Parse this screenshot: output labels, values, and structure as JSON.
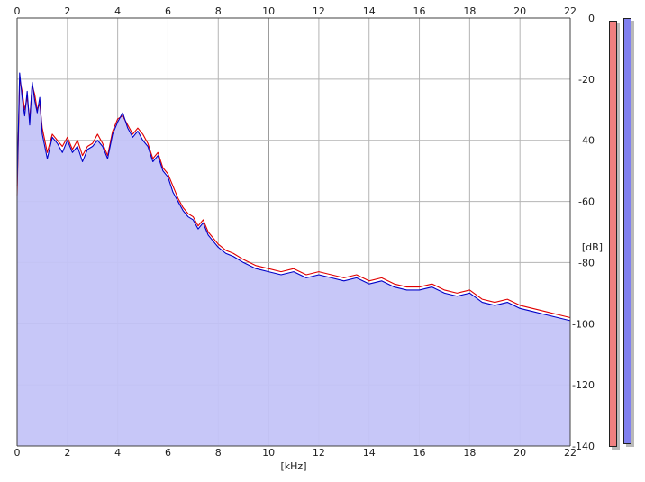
{
  "colors": {
    "background": "#ffffff",
    "fill": "#c4c4f8",
    "grid": "#b4b4b4",
    "grid_major": "#8a8a8a",
    "left_channel": "#e00000",
    "right_channel": "#0000c8",
    "left_meter": "#f08080",
    "right_meter": "#8080f0"
  },
  "chart_data": {
    "type": "line",
    "xlabel": "[kHz]",
    "ylabel": "[dB]",
    "xlim": [
      0,
      22
    ],
    "ylim": [
      -140,
      0
    ],
    "x_ticks": [
      "0",
      "2",
      "4",
      "6",
      "8",
      "10",
      "12",
      "14",
      "16",
      "18",
      "20",
      "22"
    ],
    "y_ticks": [
      "0",
      "-20",
      "-40",
      "-60",
      "-80",
      "-100",
      "-120",
      "-140"
    ],
    "grid": true,
    "series": [
      {
        "color": "red",
        "x": [
          0,
          0.1,
          0.2,
          0.3,
          0.4,
          0.5,
          0.6,
          0.7,
          0.8,
          0.9,
          1.0,
          1.2,
          1.4,
          1.6,
          1.8,
          2.0,
          2.2,
          2.4,
          2.6,
          2.8,
          3.0,
          3.2,
          3.4,
          3.6,
          3.8,
          4.0,
          4.2,
          4.4,
          4.6,
          4.8,
          5.0,
          5.2,
          5.4,
          5.6,
          5.8,
          6.0,
          6.2,
          6.4,
          6.6,
          6.8,
          7.0,
          7.2,
          7.4,
          7.6,
          7.8,
          8.0,
          8.3,
          8.6,
          9.0,
          9.5,
          10.0,
          10.5,
          11.0,
          11.5,
          12.0,
          12.5,
          13.0,
          13.5,
          14.0,
          14.5,
          15.0,
          15.5,
          16.0,
          16.5,
          17.0,
          17.5,
          18.0,
          18.5,
          19.0,
          19.5,
          20.0,
          20.5,
          21.0,
          21.5,
          22.0
        ],
        "y": [
          -58,
          -20,
          -24,
          -30,
          -26,
          -33,
          -22,
          -25,
          -30,
          -28,
          -36,
          -44,
          -38,
          -40,
          -42,
          -39,
          -43,
          -40,
          -45,
          -42,
          -41,
          -38,
          -41,
          -45,
          -37,
          -33,
          -32,
          -35,
          -38,
          -36,
          -38,
          -41,
          -46,
          -44,
          -49,
          -51,
          -55,
          -59,
          -62,
          -64,
          -65,
          -68,
          -66,
          -70,
          -72,
          -74,
          -76,
          -77,
          -79,
          -81,
          -82,
          -83,
          -82,
          -84,
          -83,
          -84,
          -85,
          -84,
          -86,
          -85,
          -87,
          -88,
          -88,
          -87,
          -89,
          -90,
          -89,
          -92,
          -93,
          -92,
          -94,
          -95,
          -96,
          -97,
          -98
        ]
      },
      {
        "color": "blue",
        "x": [
          0,
          0.1,
          0.2,
          0.3,
          0.4,
          0.5,
          0.6,
          0.7,
          0.8,
          0.9,
          1.0,
          1.2,
          1.4,
          1.6,
          1.8,
          2.0,
          2.2,
          2.4,
          2.6,
          2.8,
          3.0,
          3.2,
          3.4,
          3.6,
          3.8,
          4.0,
          4.2,
          4.4,
          4.6,
          4.8,
          5.0,
          5.2,
          5.4,
          5.6,
          5.8,
          6.0,
          6.2,
          6.4,
          6.6,
          6.8,
          7.0,
          7.2,
          7.4,
          7.6,
          7.8,
          8.0,
          8.3,
          8.6,
          9.0,
          9.5,
          10.0,
          10.5,
          11.0,
          11.5,
          12.0,
          12.5,
          13.0,
          13.5,
          14.0,
          14.5,
          15.0,
          15.5,
          16.0,
          16.5,
          17.0,
          17.5,
          18.0,
          18.5,
          19.0,
          19.5,
          20.0,
          20.5,
          21.0,
          21.5,
          22.0
        ],
        "y": [
          -55,
          -18,
          -26,
          -32,
          -24,
          -35,
          -21,
          -27,
          -31,
          -26,
          -38,
          -46,
          -39,
          -41,
          -44,
          -40,
          -44,
          -42,
          -47,
          -43,
          -42,
          -40,
          -42,
          -46,
          -38,
          -34,
          -31,
          -36,
          -39,
          -37,
          -40,
          -42,
          -47,
          -45,
          -50,
          -52,
          -57,
          -60,
          -63,
          -65,
          -66,
          -69,
          -67,
          -71,
          -73,
          -75,
          -77,
          -78,
          -80,
          -82,
          -83,
          -84,
          -83,
          -85,
          -84,
          -85,
          -86,
          -85,
          -87,
          -86,
          -88,
          -89,
          -89,
          -88,
          -90,
          -91,
          -90,
          -93,
          -94,
          -93,
          -95,
          -96,
          -97,
          -98,
          -99
        ]
      }
    ]
  },
  "meters": {
    "left_level": 1.0,
    "right_level": 1.0
  }
}
